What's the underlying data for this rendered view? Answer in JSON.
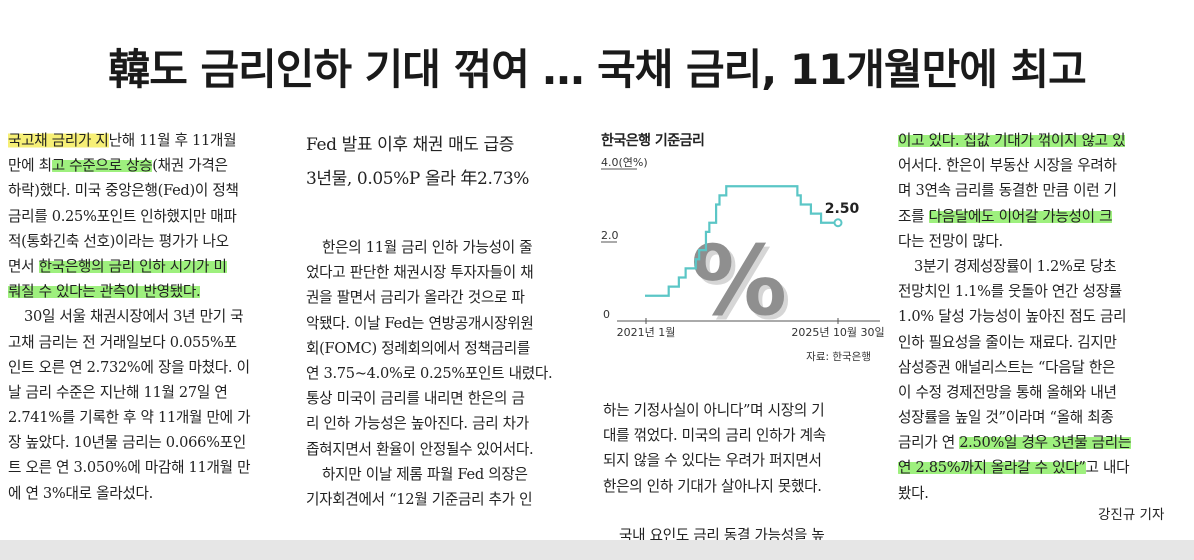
{
  "headline": "韓도 금리인하 기대 꺾여 … 국채 금리, 11개월만에 최고",
  "col1": [
    [
      {
        "t": "국고채 금리가 지",
        "h": "y"
      },
      {
        "t": "난해 11월 후 11개월"
      }
    ],
    [
      {
        "t": "만에 최"
      },
      {
        "t": "고 수준으로 상승",
        "h": "g"
      },
      {
        "t": "(채권 가격은"
      }
    ],
    [
      {
        "t": "하락)했다. 미국 중앙은행(Fed)이 정책"
      }
    ],
    [
      {
        "t": "금리를 0.25%포인트 인하했지만 매파"
      }
    ],
    [
      {
        "t": "적(통화긴축 선호)이라는 평가가 나오"
      }
    ],
    [
      {
        "t": "면서 "
      },
      {
        "t": "한국은행의 금리 인하 시기가 미",
        "h": "g"
      }
    ],
    [
      {
        "t": "뤄질 수 있다는 관측이 반영됐다.",
        "h": "g"
      }
    ],
    [
      {
        "t": "30일 서울 채권시장에서 3년 만기 국",
        "i": 1
      }
    ],
    [
      {
        "t": "고채 금리는 전 거래일보다 0.055%포"
      }
    ],
    [
      {
        "t": "인트 오른 연 2.732%에 장을 마쳤다. 이"
      }
    ],
    [
      {
        "t": "날 금리 수준은 지난해 11월 27일 연"
      }
    ],
    [
      {
        "t": "2.741%를 기록한 후 약 11개월 만에 가"
      }
    ],
    [
      {
        "t": "장 높았다. 10년물 금리는 0.066%포인"
      }
    ],
    [
      {
        "t": "트 오른 연 3.050%에 마감해 11개월 만"
      }
    ],
    [
      {
        "t": "에 연 3%대로 올라섰다."
      }
    ]
  ],
  "subheads": [
    "Fed 발표 이후 채권 매도 급증",
    "3년물, 0.05%P 올라 年2.73%"
  ],
  "col2": [
    [
      {
        "t": "한은의 11월 금리 인하 가능성이 줄",
        "i": 1
      }
    ],
    [
      {
        "t": "었다고 판단한 채권시장 투자자들이 채"
      }
    ],
    [
      {
        "t": "권을 팔면서 금리가 올라간 것으로 파"
      }
    ],
    [
      {
        "t": "악됐다. 이날 Fed는 연방공개시장위원"
      }
    ],
    [
      {
        "t": "회(FOMC) 정례회의에서 정책금리를"
      }
    ],
    [
      {
        "t": "연 3.75~4.0%로 0.25%포인트 내렸다."
      }
    ],
    [
      {
        "t": "통상 미국이 금리를 내리면 한은의 금"
      }
    ],
    [
      {
        "t": "리 인하 가능성은 높아진다. 금리 차가"
      }
    ],
    [
      {
        "t": "좁혀지면서 환율이 안정될수 있어서다."
      }
    ],
    [
      {
        "t": "하지만 이날 제롬 파월 Fed 의장은",
        "i": 1
      }
    ],
    [
      {
        "t": "기자회견에서 “12월 기준금리 추가 인"
      }
    ]
  ],
  "col3": [
    [
      {
        "t": "하는 기정사실이 아니다”며 시장의 기"
      }
    ],
    [
      {
        "t": "대를 꺾었다. 미국의 금리 인하가 계속"
      }
    ],
    [
      {
        "t": "되지 않을 수 있다는 우려가 퍼지면서"
      }
    ],
    [
      {
        "t": "한은의 인하 기대가 살아나지 못했다."
      }
    ],
    [
      {
        "t": "국내 요인도 금리 동결 가능성을 높",
        "i": 1
      }
    ]
  ],
  "col4": [
    [
      {
        "t": "이고 있다. 집값 기대가 꺾이지 않고 있",
        "h": "g"
      }
    ],
    [
      {
        "t": "어서다. 한은이 부동산 시장을 우려하"
      }
    ],
    [
      {
        "t": "며 3연속 금리를 동결한 만큼 이런 기"
      }
    ],
    [
      {
        "t": "조를 "
      },
      {
        "t": "다음달에도 이어갈 가능성이 크",
        "h": "g"
      }
    ],
    [
      {
        "t": "다는 전망이 많다."
      }
    ],
    [
      {
        "t": "3분기 경제성장률이 1.2%로 당초",
        "i": 1
      }
    ],
    [
      {
        "t": "전망치인 1.1%를 웃돌아 연간 성장률"
      }
    ],
    [
      {
        "t": "1.0% 달성 가능성이 높아진 점도 금리"
      }
    ],
    [
      {
        "t": "인하 필요성을 줄이는 재료다. 김지만"
      }
    ],
    [
      {
        "t": "삼성증권 애널리스트는 “다음달 한은"
      }
    ],
    [
      {
        "t": "이 수정 경제전망을 통해 올해와 내년"
      }
    ],
    [
      {
        "t": "성장률을 높일 것”이라며 “올해 최종"
      }
    ],
    [
      {
        "t": "금리가 연 "
      },
      {
        "t": "2.50%일 경우 3년물 금리는",
        "h": "g"
      }
    ],
    [
      {
        "t": "연 2.85%까지 올라갈 수 있다”",
        "h": "g"
      },
      {
        "t": "고 내다"
      }
    ],
    [
      {
        "t": "봤다."
      }
    ]
  ],
  "byline": "강진규 기자",
  "chart_data": {
    "type": "line",
    "title": "한국은행 기준금리",
    "ylabel": "4.0(연%)",
    "y_ticks": [
      "2.0",
      "0"
    ],
    "ylim": [
      0,
      4.0
    ],
    "x_labels": [
      "2021년 1월",
      "2025년 10월 30일"
    ],
    "last_value_label": "2.50",
    "source": "자료: 한국은행",
    "watermark": "%",
    "series": [
      {
        "x": [
          "2021-01",
          "2021-08",
          "2021-11",
          "2022-01",
          "2022-04",
          "2022-05",
          "2022-07",
          "2022-08",
          "2022-10",
          "2022-11",
          "2023-01",
          "2024-10",
          "2024-11",
          "2025-02",
          "2025-05",
          "2025-10"
        ],
        "values": [
          0.5,
          0.75,
          1.0,
          1.25,
          1.5,
          1.75,
          2.25,
          2.5,
          3.0,
          3.25,
          3.5,
          3.25,
          3.0,
          2.75,
          2.5,
          2.5
        ]
      }
    ],
    "accent": "#5bc6c6"
  }
}
